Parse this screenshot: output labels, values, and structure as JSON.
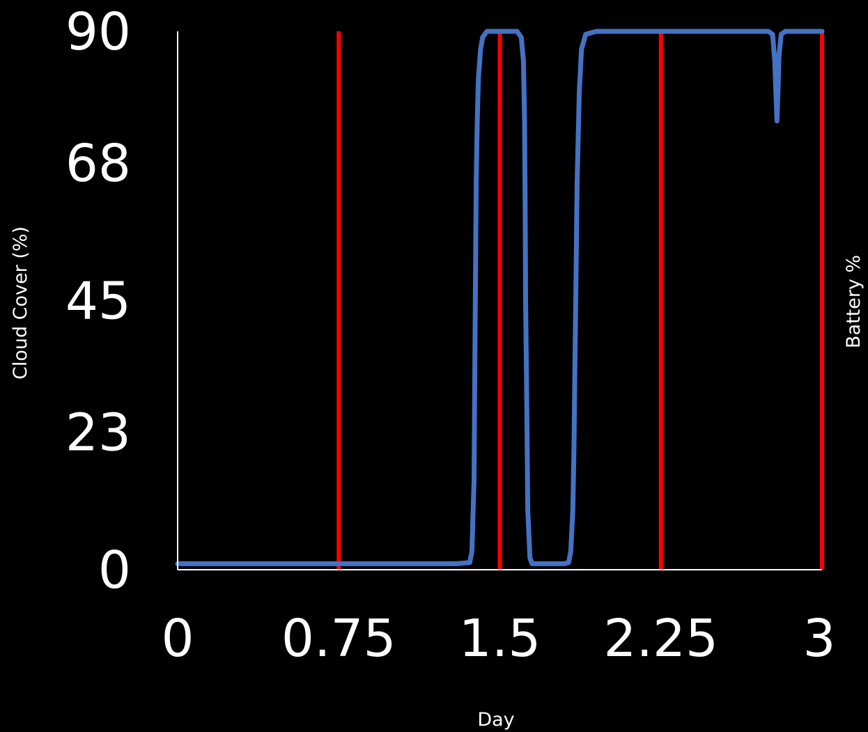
{
  "chart_data": {
    "type": "line",
    "title": "",
    "xlabel": "Day",
    "ylabel": "Cloud Cover (%)",
    "ylabel_right": "Battery %",
    "xlim": [
      0,
      3
    ],
    "ylim": [
      0,
      90
    ],
    "x_ticks": [
      "0",
      "0.75",
      "1.5",
      "2.25",
      "3"
    ],
    "y_ticks": [
      "0",
      "23",
      "45",
      "68",
      "90"
    ],
    "grid": false,
    "legend": "none",
    "colors": {
      "background": "#000000",
      "axis": "#ffffff",
      "series": "#4472C4",
      "markers": "#FF0000"
    },
    "series": [
      {
        "x": [
          0,
          0.5,
          1.0,
          1.3,
          1.36,
          1.37,
          1.38,
          1.385,
          1.39,
          1.395,
          1.4,
          1.41,
          1.42,
          1.44,
          1.48,
          1.52,
          1.58,
          1.6,
          1.61,
          1.615,
          1.618,
          1.62,
          1.625,
          1.63,
          1.64,
          1.65,
          1.66,
          1.68,
          1.72,
          1.76,
          1.8,
          1.82,
          1.83,
          1.84,
          1.845,
          1.85,
          1.855,
          1.86,
          1.87,
          1.88,
          1.9,
          1.95,
          2.1,
          2.4,
          2.6,
          2.75,
          2.77,
          2.78,
          2.785,
          2.79,
          2.795,
          2.8,
          2.81,
          2.83,
          2.86,
          2.9,
          2.95,
          3.0
        ],
        "y": [
          1,
          1,
          1,
          1,
          1.2,
          3,
          15,
          40,
          65,
          75,
          82,
          87,
          89,
          90,
          90,
          90,
          90,
          89,
          85,
          75,
          60,
          45,
          30,
          10,
          2,
          1,
          1,
          1,
          1,
          1,
          1,
          1.2,
          3,
          10,
          20,
          35,
          50,
          65,
          80,
          87,
          89.5,
          90,
          90,
          90,
          90,
          90,
          89.5,
          85,
          80,
          75,
          80,
          86,
          89.5,
          90,
          90,
          90,
          90,
          90
        ]
      }
    ],
    "event_markers_x": [
      0.75,
      1.5,
      2.25,
      3
    ]
  }
}
